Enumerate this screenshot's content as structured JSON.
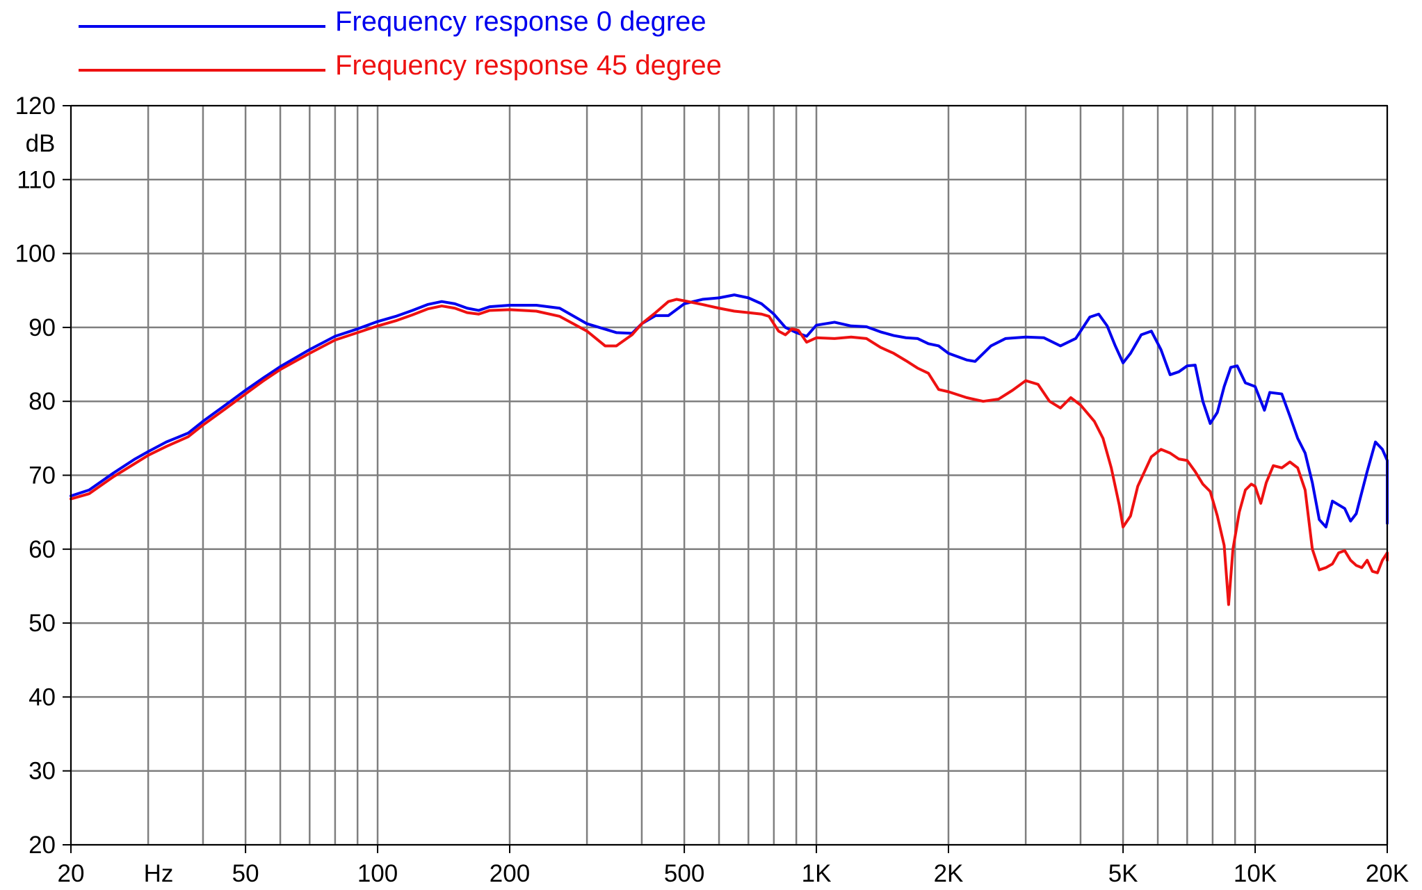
{
  "chart_data": {
    "type": "line",
    "title": "",
    "xlabel": "",
    "ylabel": "",
    "x_scale": "log",
    "xlim": [
      20,
      20000
    ],
    "ylim": [
      20,
      120
    ],
    "grid": true,
    "legend_position": "top-left",
    "x_unit_label": "Hz",
    "y_unit_label": "dB",
    "x_tick_labels": [
      {
        "value": 20,
        "label": "20"
      },
      {
        "value": 50,
        "label": "50"
      },
      {
        "value": 100,
        "label": "100"
      },
      {
        "value": 200,
        "label": "200"
      },
      {
        "value": 500,
        "label": "500"
      },
      {
        "value": 1000,
        "label": "1K"
      },
      {
        "value": 2000,
        "label": "2K"
      },
      {
        "value": 5000,
        "label": "5K"
      },
      {
        "value": 10000,
        "label": "10K"
      },
      {
        "value": 20000,
        "label": "20K"
      }
    ],
    "x_gridlines": [
      20,
      30,
      40,
      50,
      60,
      70,
      80,
      90,
      100,
      200,
      300,
      400,
      500,
      600,
      700,
      800,
      900,
      1000,
      2000,
      3000,
      4000,
      5000,
      6000,
      7000,
      8000,
      9000,
      10000,
      20000
    ],
    "y_ticks": [
      {
        "value": 120,
        "label": "120"
      },
      {
        "value": 110,
        "label": "110"
      },
      {
        "value": 100,
        "label": "100"
      },
      {
        "value": 90,
        "label": "90"
      },
      {
        "value": 80,
        "label": "80"
      },
      {
        "value": 70,
        "label": "70"
      },
      {
        "value": 60,
        "label": "60"
      },
      {
        "value": 50,
        "label": "50"
      },
      {
        "value": 40,
        "label": "40"
      },
      {
        "value": 30,
        "label": "30"
      },
      {
        "value": 20,
        "label": "20"
      }
    ],
    "colors": {
      "grid": "#7f7f7f",
      "axis": "#000000",
      "series_0": "#0000ee",
      "series_1": "#ee1111"
    },
    "series": [
      {
        "name": "Frequency response 0 degree",
        "color": "#0000ee",
        "points": [
          [
            20,
            67.2
          ],
          [
            22,
            68.0
          ],
          [
            25,
            70.3
          ],
          [
            28,
            72.2
          ],
          [
            30,
            73.2
          ],
          [
            33,
            74.5
          ],
          [
            37,
            75.7
          ],
          [
            40,
            77.3
          ],
          [
            45,
            79.5
          ],
          [
            50,
            81.5
          ],
          [
            55,
            83.2
          ],
          [
            60,
            84.7
          ],
          [
            70,
            87.0
          ],
          [
            80,
            88.8
          ],
          [
            90,
            89.8
          ],
          [
            100,
            90.8
          ],
          [
            110,
            91.5
          ],
          [
            120,
            92.3
          ],
          [
            130,
            93.1
          ],
          [
            140,
            93.5
          ],
          [
            150,
            93.2
          ],
          [
            160,
            92.6
          ],
          [
            170,
            92.3
          ],
          [
            180,
            92.8
          ],
          [
            200,
            93.0
          ],
          [
            230,
            93.0
          ],
          [
            260,
            92.6
          ],
          [
            300,
            90.5
          ],
          [
            350,
            89.3
          ],
          [
            380,
            89.2
          ],
          [
            400,
            90.5
          ],
          [
            430,
            91.6
          ],
          [
            460,
            91.6
          ],
          [
            500,
            93.2
          ],
          [
            550,
            93.8
          ],
          [
            600,
            94.0
          ],
          [
            650,
            94.4
          ],
          [
            700,
            94.0
          ],
          [
            750,
            93.2
          ],
          [
            800,
            91.8
          ],
          [
            850,
            90.0
          ],
          [
            900,
            89.3
          ],
          [
            950,
            88.8
          ],
          [
            1000,
            90.3
          ],
          [
            1100,
            90.7
          ],
          [
            1200,
            90.2
          ],
          [
            1300,
            90.1
          ],
          [
            1400,
            89.4
          ],
          [
            1500,
            88.9
          ],
          [
            1600,
            88.6
          ],
          [
            1700,
            88.5
          ],
          [
            1800,
            87.8
          ],
          [
            1900,
            87.5
          ],
          [
            2000,
            86.5
          ],
          [
            2200,
            85.6
          ],
          [
            2300,
            85.4
          ],
          [
            2500,
            87.5
          ],
          [
            2700,
            88.5
          ],
          [
            3000,
            88.7
          ],
          [
            3300,
            88.6
          ],
          [
            3600,
            87.5
          ],
          [
            3900,
            88.5
          ],
          [
            4200,
            91.4
          ],
          [
            4400,
            91.8
          ],
          [
            4600,
            90.2
          ],
          [
            4800,
            87.5
          ],
          [
            5000,
            85.2
          ],
          [
            5200,
            86.5
          ],
          [
            5500,
            89.0
          ],
          [
            5800,
            89.5
          ],
          [
            6100,
            87.0
          ],
          [
            6400,
            83.6
          ],
          [
            6700,
            84.0
          ],
          [
            7000,
            84.8
          ],
          [
            7300,
            84.9
          ],
          [
            7600,
            80.0
          ],
          [
            7900,
            77.0
          ],
          [
            8200,
            78.5
          ],
          [
            8500,
            82.0
          ],
          [
            8800,
            84.6
          ],
          [
            9100,
            84.8
          ],
          [
            9500,
            82.5
          ],
          [
            10000,
            82.0
          ],
          [
            10500,
            78.8
          ],
          [
            10800,
            81.2
          ],
          [
            11500,
            81.0
          ],
          [
            12000,
            78.0
          ],
          [
            12500,
            75.0
          ],
          [
            13000,
            73.0
          ],
          [
            13500,
            69.0
          ],
          [
            14000,
            64.0
          ],
          [
            14500,
            63.0
          ],
          [
            15000,
            66.5
          ],
          [
            16000,
            65.5
          ],
          [
            16500,
            63.8
          ],
          [
            17000,
            64.8
          ],
          [
            18000,
            70.5
          ],
          [
            18800,
            74.5
          ],
          [
            19500,
            73.5
          ],
          [
            20000,
            72.0
          ],
          [
            20800,
            69.0
          ],
          [
            21500,
            64.5
          ],
          [
            22000,
            63.5
          ],
          [
            22500,
            66.0
          ]
        ]
      },
      {
        "name": "Frequency response 45 degree",
        "color": "#ee1111",
        "points": [
          [
            20,
            66.8
          ],
          [
            22,
            67.5
          ],
          [
            25,
            69.8
          ],
          [
            28,
            71.6
          ],
          [
            30,
            72.7
          ],
          [
            33,
            73.9
          ],
          [
            37,
            75.2
          ],
          [
            40,
            76.8
          ],
          [
            45,
            79.0
          ],
          [
            50,
            81.0
          ],
          [
            55,
            82.8
          ],
          [
            60,
            84.3
          ],
          [
            70,
            86.5
          ],
          [
            80,
            88.3
          ],
          [
            90,
            89.3
          ],
          [
            100,
            90.2
          ],
          [
            110,
            90.9
          ],
          [
            120,
            91.7
          ],
          [
            130,
            92.5
          ],
          [
            140,
            92.9
          ],
          [
            150,
            92.6
          ],
          [
            160,
            92.0
          ],
          [
            170,
            91.8
          ],
          [
            180,
            92.3
          ],
          [
            200,
            92.4
          ],
          [
            230,
            92.2
          ],
          [
            260,
            91.5
          ],
          [
            300,
            89.5
          ],
          [
            330,
            87.5
          ],
          [
            350,
            87.5
          ],
          [
            380,
            89.0
          ],
          [
            400,
            90.5
          ],
          [
            430,
            92.0
          ],
          [
            460,
            93.5
          ],
          [
            480,
            93.8
          ],
          [
            500,
            93.6
          ],
          [
            550,
            93.1
          ],
          [
            600,
            92.6
          ],
          [
            650,
            92.2
          ],
          [
            700,
            92.0
          ],
          [
            750,
            91.8
          ],
          [
            780,
            91.5
          ],
          [
            820,
            89.5
          ],
          [
            850,
            89.0
          ],
          [
            880,
            89.8
          ],
          [
            910,
            89.6
          ],
          [
            950,
            88.0
          ],
          [
            1000,
            88.6
          ],
          [
            1100,
            88.5
          ],
          [
            1200,
            88.7
          ],
          [
            1300,
            88.5
          ],
          [
            1400,
            87.3
          ],
          [
            1500,
            86.5
          ],
          [
            1600,
            85.5
          ],
          [
            1700,
            84.5
          ],
          [
            1800,
            83.8
          ],
          [
            1900,
            81.6
          ],
          [
            2000,
            81.3
          ],
          [
            2200,
            80.5
          ],
          [
            2400,
            80.0
          ],
          [
            2600,
            80.3
          ],
          [
            2800,
            81.5
          ],
          [
            3000,
            82.8
          ],
          [
            3200,
            82.3
          ],
          [
            3400,
            80.0
          ],
          [
            3600,
            79.1
          ],
          [
            3800,
            80.5
          ],
          [
            4000,
            79.5
          ],
          [
            4300,
            77.3
          ],
          [
            4500,
            75.0
          ],
          [
            4700,
            71.0
          ],
          [
            4900,
            66.0
          ],
          [
            5000,
            63.0
          ],
          [
            5200,
            64.5
          ],
          [
            5400,
            68.5
          ],
          [
            5800,
            72.5
          ],
          [
            6100,
            73.5
          ],
          [
            6400,
            73.0
          ],
          [
            6700,
            72.2
          ],
          [
            7000,
            72.0
          ],
          [
            7300,
            70.5
          ],
          [
            7600,
            68.8
          ],
          [
            7900,
            67.8
          ],
          [
            8200,
            64.5
          ],
          [
            8500,
            60.5
          ],
          [
            8700,
            52.5
          ],
          [
            8900,
            60.0
          ],
          [
            9200,
            65.0
          ],
          [
            9500,
            68.0
          ],
          [
            9800,
            68.8
          ],
          [
            10000,
            68.5
          ],
          [
            10300,
            66.2
          ],
          [
            10600,
            69.0
          ],
          [
            11000,
            71.3
          ],
          [
            11500,
            71.0
          ],
          [
            12000,
            71.8
          ],
          [
            12500,
            71.0
          ],
          [
            13000,
            68.0
          ],
          [
            13500,
            60.0
          ],
          [
            14000,
            57.2
          ],
          [
            14500,
            57.5
          ],
          [
            15000,
            58.0
          ],
          [
            15500,
            59.5
          ],
          [
            16000,
            59.8
          ],
          [
            16500,
            58.5
          ],
          [
            17000,
            57.8
          ],
          [
            17500,
            57.5
          ],
          [
            18000,
            58.5
          ],
          [
            18500,
            57.0
          ],
          [
            19000,
            56.8
          ],
          [
            19500,
            58.5
          ],
          [
            20000,
            59.5
          ],
          [
            21000,
            58.8
          ],
          [
            22000,
            59.5
          ],
          [
            22500,
            58.5
          ]
        ]
      }
    ]
  }
}
